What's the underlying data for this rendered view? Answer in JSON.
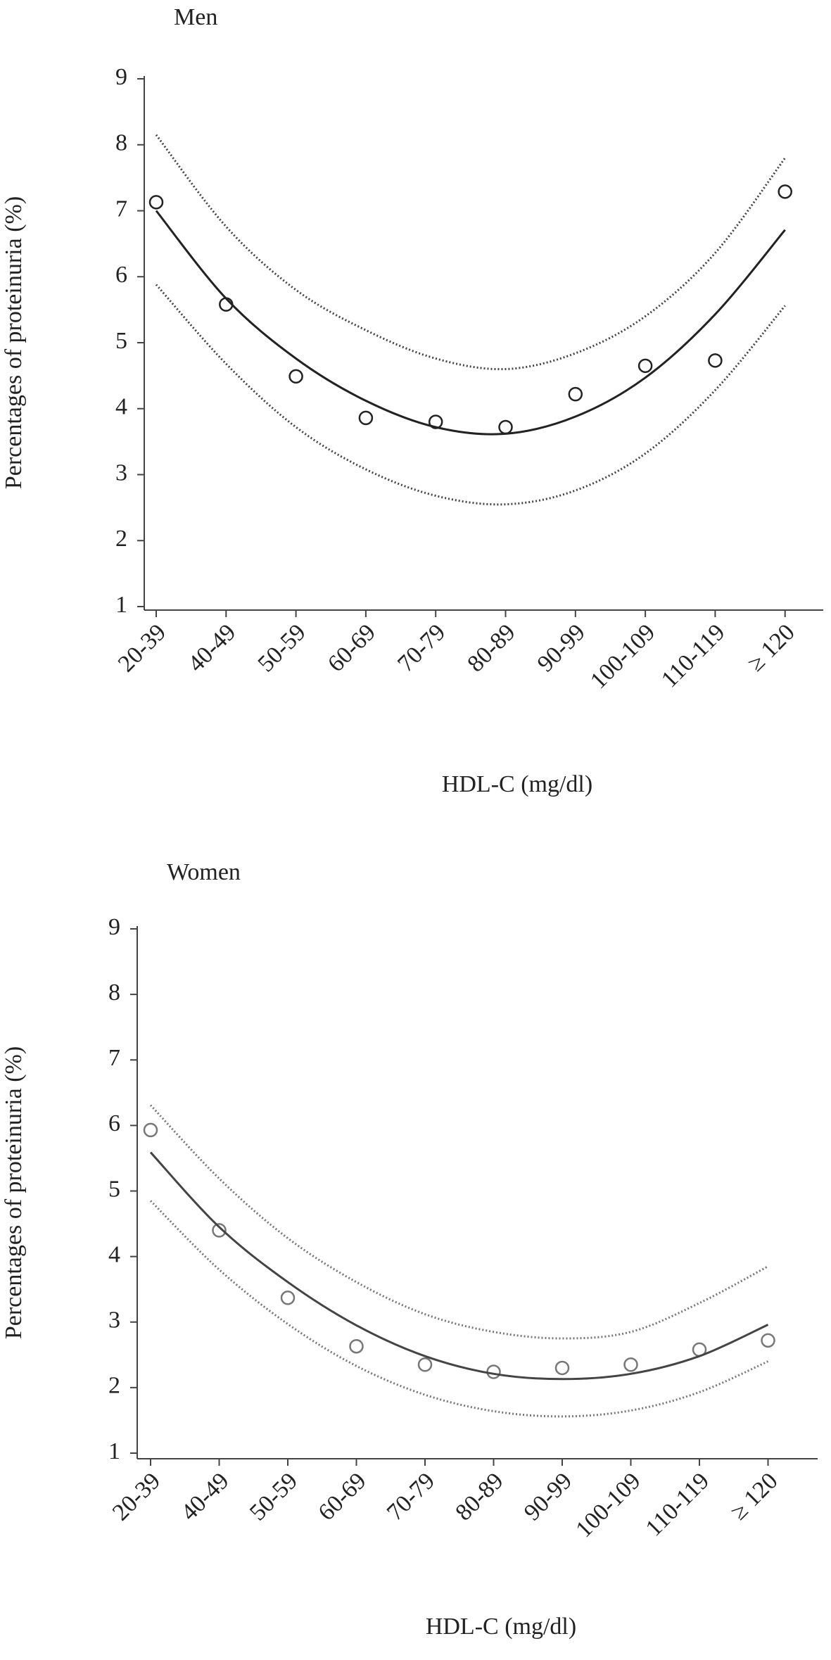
{
  "chart_data": [
    {
      "type": "scatter",
      "title": "Men",
      "x_label": "HDL-C (mg/dl)",
      "y_label": "Percentages of proteinuria (%)",
      "categories": [
        "20-39",
        "40-49",
        "50-59",
        "60-69",
        "70-79",
        "80-89",
        "90-99",
        "100-109",
        "110-119",
        "≥ 120"
      ],
      "ylim": [
        1,
        9
      ],
      "yticks": [
        1,
        2,
        3,
        4,
        5,
        6,
        7,
        8,
        9
      ],
      "series": [
        {
          "mark": "circle",
          "color": "#222222",
          "values": [
            7.13,
            5.58,
            4.49,
            3.86,
            3.8,
            3.72,
            4.22,
            4.65,
            4.73,
            7.29
          ]
        },
        {
          "mark": "line",
          "color": "#222222",
          "values": [
            7.0,
            5.67,
            4.76,
            4.12,
            3.72,
            3.62,
            3.88,
            4.47,
            5.43,
            6.71
          ]
        },
        {
          "mark": "dotted",
          "color": "#444444",
          "values": [
            8.15,
            6.76,
            5.8,
            5.19,
            4.76,
            4.6,
            4.84,
            5.4,
            6.36,
            7.8
          ]
        },
        {
          "mark": "dotted",
          "color": "#444444",
          "values": [
            5.88,
            4.68,
            3.72,
            3.08,
            2.68,
            2.55,
            2.76,
            3.32,
            4.28,
            5.56
          ]
        }
      ]
    },
    {
      "type": "scatter",
      "title": "Women",
      "x_label": "HDL-C (mg/dl)",
      "y_label": "Percentages of proteinuria (%)",
      "categories": [
        "20-39",
        "40-49",
        "50-59",
        "60-69",
        "70-79",
        "80-89",
        "90-99",
        "100-109",
        "110-119",
        "≥ 120"
      ],
      "ylim": [
        1,
        9
      ],
      "yticks": [
        1,
        2,
        3,
        4,
        5,
        6,
        7,
        8,
        9
      ],
      "series": [
        {
          "mark": "circle",
          "color": "#777777",
          "values": [
            5.93,
            4.4,
            3.37,
            2.63,
            2.35,
            2.24,
            2.3,
            2.35,
            2.58,
            2.72
          ]
        },
        {
          "mark": "line",
          "color": "#444444",
          "values": [
            5.59,
            4.45,
            3.61,
            2.95,
            2.48,
            2.21,
            2.13,
            2.21,
            2.48,
            2.96
          ]
        },
        {
          "mark": "dotted",
          "color": "#777777",
          "values": [
            6.31,
            5.19,
            4.28,
            3.61,
            3.12,
            2.85,
            2.75,
            2.85,
            3.29,
            3.85
          ]
        },
        {
          "mark": "dotted",
          "color": "#777777",
          "values": [
            4.85,
            3.8,
            2.97,
            2.33,
            1.89,
            1.64,
            1.56,
            1.65,
            1.93,
            2.4
          ]
        }
      ]
    }
  ]
}
